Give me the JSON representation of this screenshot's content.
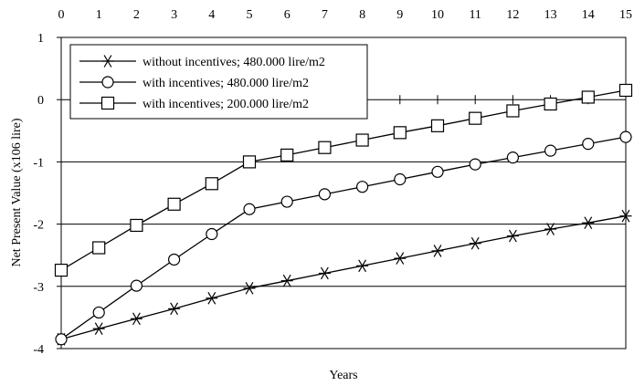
{
  "chart_data": {
    "type": "line",
    "xlabel": "Years",
    "ylabel": "Net Present Value (x106 lire)",
    "xlim": [
      0,
      15
    ],
    "ylim": [
      -4,
      1
    ],
    "x_ticks": [
      0,
      1,
      2,
      3,
      4,
      5,
      6,
      7,
      8,
      9,
      10,
      11,
      12,
      13,
      14,
      15
    ],
    "y_ticks": [
      1,
      0,
      -1,
      -2,
      -3,
      -4
    ],
    "x_tick_position": "top",
    "grid": "horizontal",
    "legend_position": "top-left",
    "series": [
      {
        "name": "without incentives; 480.000 lire/m2",
        "marker": "asterisk",
        "color": "#000000",
        "x": [
          0,
          1,
          2,
          3,
          4,
          5,
          6,
          7,
          8,
          9,
          10,
          11,
          12,
          13,
          14,
          15
        ],
        "values": [
          -3.85,
          -3.68,
          -3.52,
          -3.36,
          -3.19,
          -3.03,
          -2.91,
          -2.79,
          -2.67,
          -2.55,
          -2.43,
          -2.31,
          -2.19,
          -2.08,
          -1.98,
          -1.87
        ]
      },
      {
        "name": "with incentives; 480.000 lire/m2",
        "marker": "circle",
        "color": "#000000",
        "x": [
          0,
          1,
          2,
          3,
          4,
          5,
          6,
          7,
          8,
          9,
          10,
          11,
          12,
          13,
          14,
          15
        ],
        "values": [
          -3.85,
          -3.42,
          -2.99,
          -2.57,
          -2.16,
          -1.76,
          -1.64,
          -1.52,
          -1.4,
          -1.28,
          -1.16,
          -1.04,
          -0.93,
          -0.82,
          -0.71,
          -0.6
        ]
      },
      {
        "name": "with incentives; 200.000 lire/m2",
        "marker": "square",
        "color": "#000000",
        "x": [
          0,
          1,
          2,
          3,
          4,
          5,
          6,
          7,
          8,
          9,
          10,
          11,
          12,
          13,
          14,
          15
        ],
        "values": [
          -2.74,
          -2.38,
          -2.02,
          -1.68,
          -1.35,
          -1.0,
          -0.89,
          -0.77,
          -0.65,
          -0.53,
          -0.42,
          -0.3,
          -0.18,
          -0.07,
          0.04,
          0.15
        ]
      }
    ]
  }
}
